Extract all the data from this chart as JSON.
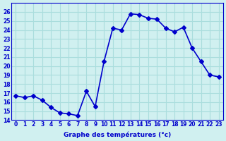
{
  "hours": [
    0,
    1,
    2,
    3,
    4,
    5,
    6,
    7,
    8,
    9,
    10,
    11,
    12,
    13,
    14,
    15,
    16,
    17,
    18,
    19,
    20,
    21,
    22,
    23
  ],
  "temperatures": [
    16.7,
    16.5,
    16.7,
    16.2,
    15.4,
    14.8,
    14.7,
    14.5,
    17.2,
    15.5,
    20.5,
    24.2,
    24.0,
    25.8,
    25.7,
    25.3,
    25.2,
    24.2,
    23.8,
    24.3,
    22.0,
    20.5,
    19.0,
    18.8
  ],
  "line_color": "#0000cc",
  "marker": "D",
  "marker_size": 3,
  "bg_color": "#d0f0f0",
  "grid_color": "#aadddd",
  "xlabel": "Graphe des températures (°c)",
  "tick_color": "#0000cc",
  "ylim": [
    14,
    27
  ],
  "xlim": [
    -0.5,
    23.5
  ],
  "yticks": [
    14,
    15,
    16,
    17,
    18,
    19,
    20,
    21,
    22,
    23,
    24,
    25,
    26
  ],
  "xticks": [
    0,
    1,
    2,
    3,
    4,
    5,
    6,
    7,
    8,
    9,
    10,
    11,
    12,
    13,
    14,
    15,
    16,
    17,
    18,
    19,
    20,
    21,
    22,
    23
  ],
  "xtick_labels": [
    "0",
    "1",
    "2",
    "3",
    "4",
    "5",
    "6",
    "7",
    "8",
    "9",
    "10",
    "11",
    "12",
    "13",
    "14",
    "15",
    "16",
    "17",
    "18",
    "19",
    "20",
    "21",
    "22",
    "23"
  ],
  "linewidth": 1.2
}
